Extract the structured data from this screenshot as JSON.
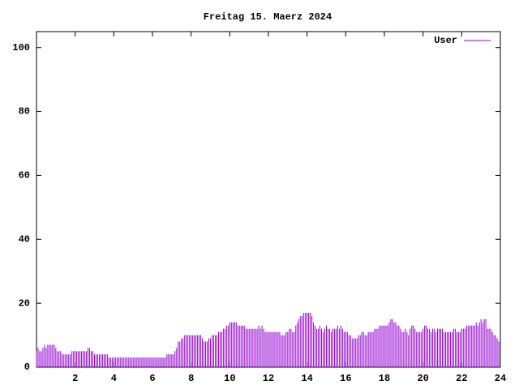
{
  "chart_data": {
    "type": "impulse",
    "title": "Freitag 15. Maerz 2024",
    "xlim": [
      0,
      24
    ],
    "xticks": [
      2,
      4,
      6,
      8,
      10,
      12,
      14,
      16,
      18,
      20,
      22,
      24
    ],
    "ylim": [
      0,
      105
    ],
    "yticks": [
      0,
      20,
      40,
      60,
      80,
      100
    ],
    "legend": "top-right",
    "x": [
      0,
      0.083,
      0.167,
      0.25,
      0.333,
      0.417,
      0.5,
      0.583,
      0.667,
      0.75,
      0.833,
      0.917,
      1,
      1.083,
      1.167,
      1.25,
      1.333,
      1.417,
      1.5,
      1.583,
      1.667,
      1.75,
      1.833,
      1.917,
      2,
      2.083,
      2.167,
      2.25,
      2.333,
      2.417,
      2.5,
      2.583,
      2.667,
      2.75,
      2.833,
      2.917,
      3,
      3.083,
      3.167,
      3.25,
      3.333,
      3.417,
      3.5,
      3.583,
      3.667,
      3.75,
      3.833,
      3.917,
      4,
      4.083,
      4.167,
      4.25,
      4.333,
      4.417,
      4.5,
      4.583,
      4.667,
      4.75,
      4.833,
      4.917,
      5,
      5.083,
      5.167,
      5.25,
      5.333,
      5.417,
      5.5,
      5.583,
      5.667,
      5.75,
      5.833,
      5.917,
      6,
      6.083,
      6.167,
      6.25,
      6.333,
      6.417,
      6.5,
      6.583,
      6.667,
      6.75,
      6.833,
      6.917,
      7,
      7.083,
      7.167,
      7.25,
      7.333,
      7.417,
      7.5,
      7.583,
      7.667,
      7.75,
      7.833,
      7.917,
      8,
      8.083,
      8.167,
      8.25,
      8.333,
      8.417,
      8.5,
      8.583,
      8.667,
      8.75,
      8.833,
      8.917,
      9,
      9.083,
      9.167,
      9.25,
      9.333,
      9.417,
      9.5,
      9.583,
      9.667,
      9.75,
      9.833,
      9.917,
      10,
      10.083,
      10.167,
      10.25,
      10.333,
      10.417,
      10.5,
      10.583,
      10.667,
      10.75,
      10.833,
      10.917,
      11,
      11.083,
      11.167,
      11.25,
      11.333,
      11.417,
      11.5,
      11.583,
      11.667,
      11.75,
      11.833,
      11.917,
      12,
      12.083,
      12.167,
      12.25,
      12.333,
      12.417,
      12.5,
      12.583,
      12.667,
      12.75,
      12.833,
      12.917,
      13,
      13.083,
      13.167,
      13.25,
      13.333,
      13.417,
      13.5,
      13.583,
      13.667,
      13.75,
      13.833,
      13.917,
      14,
      14.083,
      14.167,
      14.25,
      14.333,
      14.417,
      14.5,
      14.583,
      14.667,
      14.75,
      14.833,
      14.917,
      15,
      15.083,
      15.167,
      15.25,
      15.333,
      15.417,
      15.5,
      15.583,
      15.667,
      15.75,
      15.833,
      15.917,
      16,
      16.083,
      16.167,
      16.25,
      16.333,
      16.417,
      16.5,
      16.583,
      16.667,
      16.75,
      16.833,
      16.917,
      17,
      17.083,
      17.167,
      17.25,
      17.333,
      17.417,
      17.5,
      17.583,
      17.667,
      17.75,
      17.833,
      17.917,
      18,
      18.083,
      18.167,
      18.25,
      18.333,
      18.417,
      18.5,
      18.583,
      18.667,
      18.75,
      18.833,
      18.917,
      19,
      19.083,
      19.167,
      19.25,
      19.333,
      19.417,
      19.5,
      19.583,
      19.667,
      19.75,
      19.833,
      19.917,
      20,
      20.083,
      20.167,
      20.25,
      20.333,
      20.417,
      20.5,
      20.583,
      20.667,
      20.75,
      20.833,
      20.917,
      21,
      21.083,
      21.167,
      21.25,
      21.333,
      21.417,
      21.5,
      21.583,
      21.667,
      21.75,
      21.833,
      21.917,
      22,
      22.083,
      22.167,
      22.25,
      22.333,
      22.417,
      22.5,
      22.583,
      22.667,
      22.75,
      22.833,
      22.917,
      23,
      23.083,
      23.167,
      23.25,
      23.333,
      23.417,
      23.5,
      23.583,
      23.667,
      23.75,
      23.833,
      23.917
    ],
    "series": [
      {
        "name": "User",
        "color": "#9400d3",
        "values": [
          5,
          6,
          5,
          5,
          6,
          7,
          6,
          7,
          7,
          7,
          7,
          7,
          6,
          5,
          5,
          5,
          4,
          4,
          4,
          4,
          4,
          4,
          5,
          5,
          5,
          5,
          5,
          5,
          5,
          5,
          5,
          5,
          6,
          6,
          5,
          5,
          4,
          4,
          4,
          4,
          4,
          4,
          4,
          4,
          4,
          3,
          3,
          3,
          3,
          3,
          3,
          3,
          3,
          3,
          3,
          3,
          3,
          3,
          3,
          3,
          3,
          3,
          3,
          3,
          3,
          3,
          3,
          3,
          3,
          3,
          3,
          3,
          3,
          3,
          3,
          3,
          3,
          3,
          3,
          3,
          3,
          4,
          4,
          4,
          4,
          4,
          5,
          6,
          8,
          8,
          9,
          9,
          10,
          10,
          10,
          10,
          10,
          10,
          10,
          10,
          10,
          10,
          10,
          9,
          8,
          8,
          8,
          9,
          9,
          10,
          10,
          10,
          10,
          11,
          11,
          11,
          12,
          12,
          13,
          13,
          14,
          14,
          14,
          14,
          14,
          13,
          13,
          13,
          13,
          13,
          12,
          12,
          12,
          12,
          12,
          12,
          12,
          12,
          13,
          12,
          13,
          12,
          11,
          11,
          11,
          11,
          11,
          11,
          11,
          11,
          11,
          11,
          10,
          10,
          10,
          11,
          11,
          12,
          12,
          11,
          11,
          13,
          14,
          15,
          16,
          16,
          17,
          17,
          17,
          17,
          17,
          16,
          14,
          13,
          12,
          12,
          13,
          12,
          11,
          12,
          13,
          12,
          12,
          11,
          12,
          12,
          12,
          13,
          12,
          13,
          12,
          11,
          11,
          11,
          10,
          10,
          9,
          9,
          9,
          9,
          10,
          10,
          11,
          11,
          10,
          10,
          11,
          11,
          11,
          11,
          12,
          12,
          12,
          13,
          13,
          13,
          13,
          13,
          13,
          14,
          15,
          15,
          14,
          14,
          13,
          13,
          12,
          11,
          11,
          12,
          11,
          10,
          12,
          13,
          13,
          12,
          11,
          11,
          11,
          11,
          12,
          13,
          13,
          12,
          12,
          11,
          12,
          12,
          11,
          12,
          12,
          12,
          12,
          11,
          11,
          11,
          11,
          11,
          11,
          12,
          12,
          11,
          11,
          11,
          12,
          12,
          12,
          13,
          13,
          13,
          13,
          13,
          13,
          14,
          13,
          14,
          15,
          14,
          15,
          15,
          12,
          12,
          12,
          11,
          10,
          10,
          9,
          8
        ]
      }
    ]
  }
}
